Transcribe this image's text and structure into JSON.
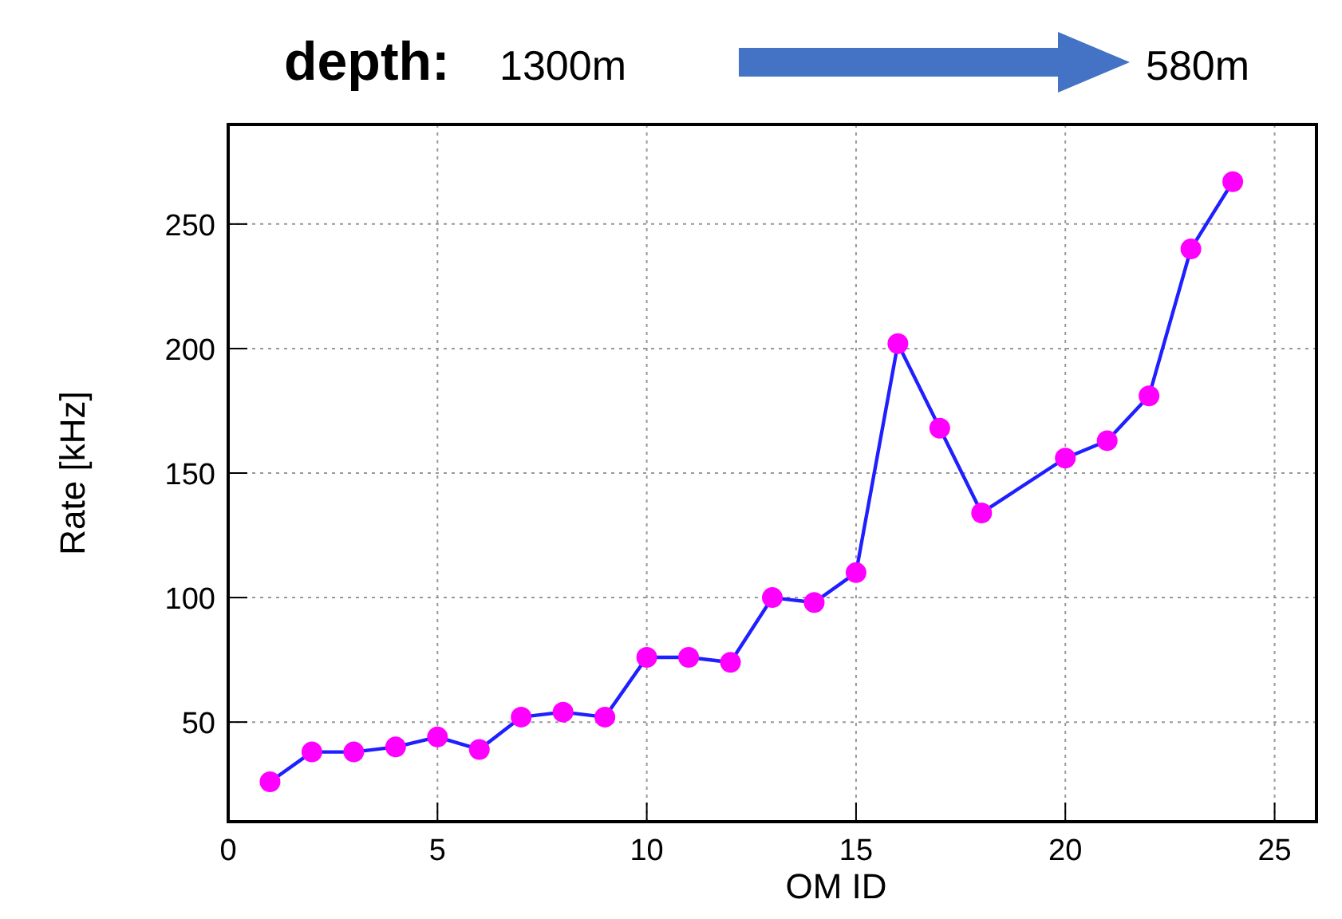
{
  "chart_data": {
    "type": "line",
    "xlabel": "OM ID",
    "ylabel": "Rate [kHz]",
    "annotations": [
      "depth:",
      "1300m",
      "580m"
    ],
    "x": [
      1,
      2,
      3,
      4,
      5,
      6,
      7,
      8,
      9,
      10,
      11,
      12,
      13,
      14,
      15,
      16,
      17,
      18,
      20,
      21,
      22,
      23,
      24
    ],
    "series": [
      {
        "color": "#1f1fff",
        "colors": [
          "#ff00ff",
          "#ff00ff",
          "#ff00ff",
          "#ff00ff",
          "#ff00ff",
          "#ff00ff",
          "#ff00ff",
          "#ff00ff",
          "#ff00ff",
          "#ff00ff",
          "#ff00ff",
          "#ff00ff",
          "#ff00ff",
          "#ff00ff",
          "#ff00ff",
          "#ff00ff",
          "#ff00ff",
          "#ff00ff",
          "#ff00ff",
          "#ff00ff",
          "#ff00ff",
          "#ff00ff",
          "#ff00ff"
        ],
        "values": [
          26,
          38,
          38,
          40,
          44,
          39,
          52,
          54,
          52,
          76,
          76,
          74,
          100,
          98,
          110,
          202,
          168,
          134,
          156,
          163,
          181,
          240,
          267
        ]
      }
    ],
    "marker": "circle",
    "line_style": "solid",
    "grid": true,
    "xlim": [
      0,
      26
    ],
    "xticks": [
      0,
      5,
      10,
      15,
      20,
      25
    ],
    "ylim": [
      10,
      290
    ],
    "yticks": [
      50,
      100,
      150,
      200,
      250
    ]
  }
}
